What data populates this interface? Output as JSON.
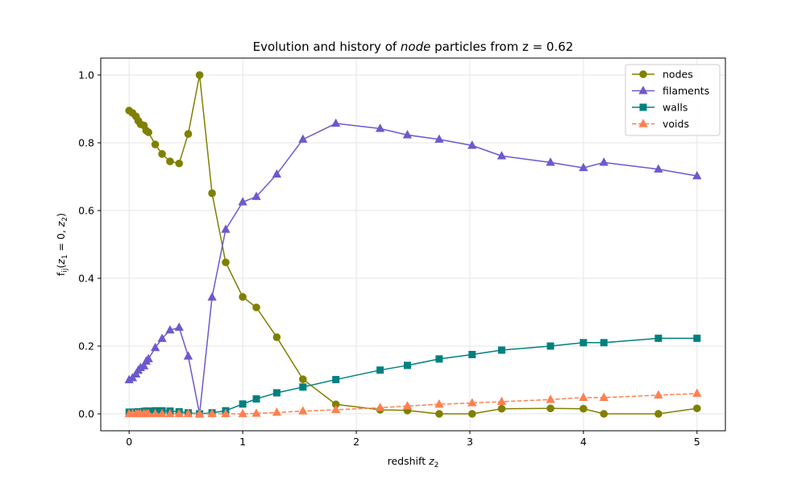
{
  "chart_data": {
    "type": "line",
    "title_prefix": "Evolution and history of ",
    "title_emph": "node",
    "title_suffix": " particles from z = 0.62",
    "xlabel_main": "redshift ",
    "xlabel_var": "z",
    "xlabel_sub": "2",
    "ylabel_main": "f",
    "ylabel_sub": "ij",
    "ylabel_open": "(",
    "ylabel_z1": "z",
    "ylabel_z1_sub": "1",
    "ylabel_eq": " = 0, ",
    "ylabel_z2": "z",
    "ylabel_z2_sub": "2",
    "ylabel_close": ")",
    "xlim": [
      -0.25,
      5.25
    ],
    "ylim": [
      -0.05,
      1.05
    ],
    "xticks": [
      0,
      1,
      2,
      3,
      4,
      5
    ],
    "xtick_labels": [
      "0",
      "1",
      "2",
      "3",
      "4",
      "5"
    ],
    "yticks": [
      0.0,
      0.2,
      0.4,
      0.6,
      0.8,
      1.0
    ],
    "ytick_labels": [
      "0.0",
      "0.2",
      "0.4",
      "0.6",
      "0.8",
      "1.0"
    ],
    "grid": true,
    "legend_position": "top-right",
    "x": [
      0.0,
      0.03,
      0.06,
      0.08,
      0.1,
      0.13,
      0.15,
      0.17,
      0.23,
      0.29,
      0.36,
      0.44,
      0.52,
      0.62,
      0.73,
      0.85,
      1.0,
      1.12,
      1.3,
      1.53,
      1.82,
      2.21,
      2.45,
      2.73,
      3.02,
      3.28,
      3.71,
      4.0,
      4.18,
      4.66,
      5.0
    ],
    "series": [
      {
        "name": "nodes",
        "color": "#808000",
        "marker": "circle",
        "dashed": false,
        "values": [
          0.895,
          0.888,
          0.878,
          0.865,
          0.855,
          0.851,
          0.836,
          0.831,
          0.795,
          0.767,
          0.745,
          0.739,
          0.826,
          1.0,
          0.651,
          0.447,
          0.345,
          0.314,
          0.226,
          0.102,
          0.028,
          0.012,
          0.01,
          0.0,
          0.0,
          0.015,
          0.016,
          0.015,
          0.0,
          0.0,
          0.016
        ]
      },
      {
        "name": "filaments",
        "color": "#6a5acd",
        "marker": "triangle",
        "dashed": false,
        "values": [
          0.1,
          0.106,
          0.117,
          0.128,
          0.136,
          0.141,
          0.155,
          0.162,
          0.195,
          0.222,
          0.247,
          0.255,
          0.17,
          0.0,
          0.344,
          0.544,
          0.625,
          0.641,
          0.707,
          0.81,
          0.857,
          0.842,
          0.823,
          0.81,
          0.792,
          0.761,
          0.742,
          0.726,
          0.742,
          0.722,
          0.702
        ]
      },
      {
        "name": "walls",
        "color": "#008080",
        "marker": "square",
        "dashed": false,
        "values": [
          0.005,
          0.005,
          0.005,
          0.006,
          0.006,
          0.007,
          0.008,
          0.008,
          0.009,
          0.009,
          0.008,
          0.006,
          0.003,
          0.0,
          0.003,
          0.009,
          0.029,
          0.044,
          0.062,
          0.079,
          0.101,
          0.129,
          0.143,
          0.162,
          0.175,
          0.188,
          0.2,
          0.21,
          0.21,
          0.223,
          0.223
        ]
      },
      {
        "name": "voids",
        "color": "#ff7f50",
        "marker": "triangle",
        "dashed": true,
        "values": [
          0.0,
          0.0,
          0.0,
          0.0,
          0.0,
          0.0,
          0.0,
          0.0,
          0.0,
          0.0,
          0.0,
          0.0,
          0.0,
          0.0,
          0.0,
          0.0,
          0.0,
          0.001,
          0.004,
          0.008,
          0.012,
          0.018,
          0.023,
          0.028,
          0.032,
          0.036,
          0.042,
          0.048,
          0.048,
          0.055,
          0.06
        ]
      }
    ]
  }
}
